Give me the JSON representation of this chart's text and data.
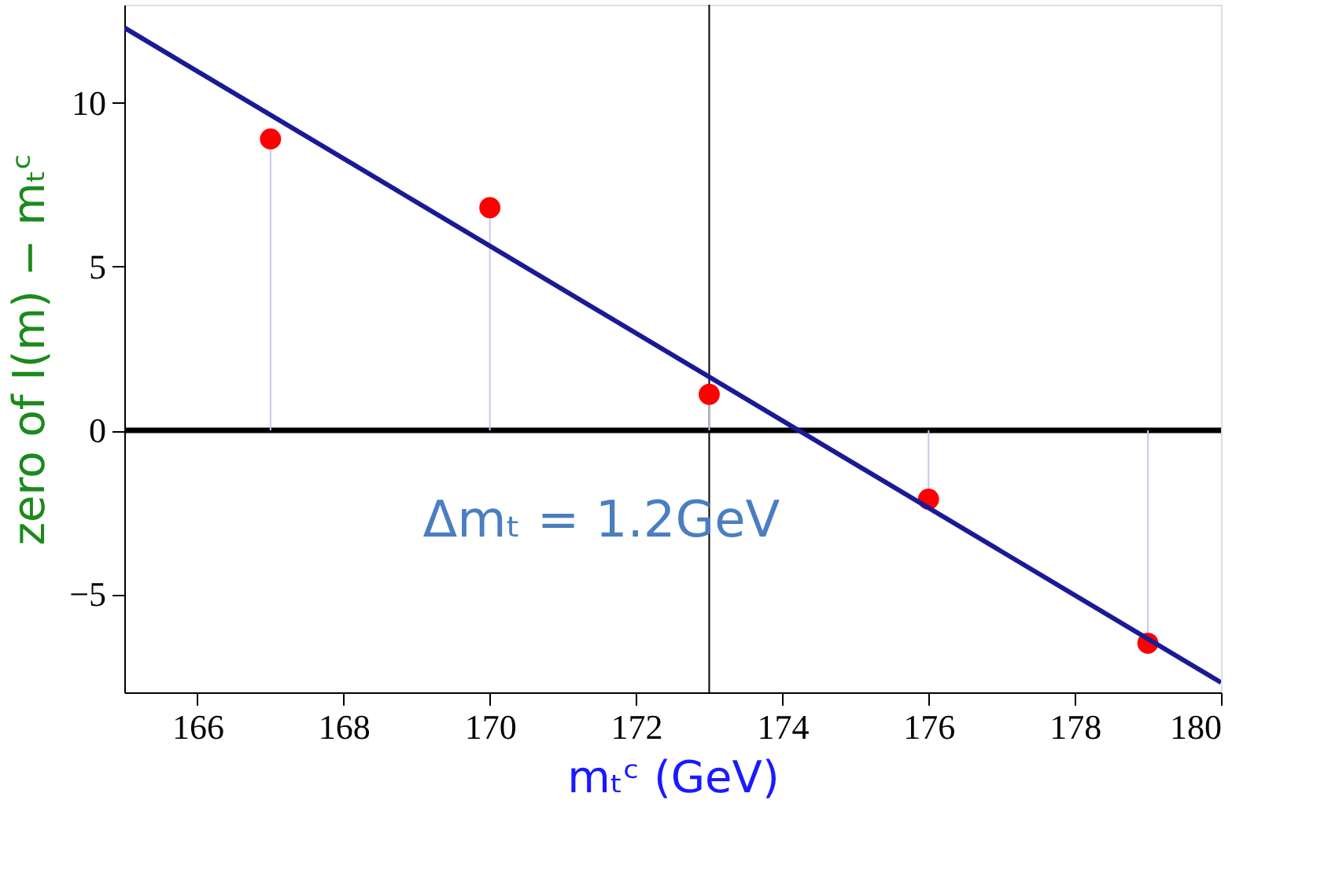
{
  "chart_data": {
    "type": "lollipop",
    "xlabel": "mₜᶜ (GeV)",
    "ylabel": "zero of I(m) − mₜᶜ",
    "x": [
      167,
      170,
      173,
      176,
      179
    ],
    "series": [
      {
        "color": "#ff0000",
        "values": [
          8.9,
          6.8,
          1.1,
          -2.1,
          -6.5
        ]
      },
      {
        "type": "line",
        "marker": "none",
        "color": "#1a1a96",
        "x": [
          165,
          180
        ],
        "values": [
          12.3,
          -7.7
        ]
      }
    ],
    "xlim": [
      165,
      180
    ],
    "ylim": [
      -8,
      13
    ],
    "xticks": [
      166,
      168,
      170,
      172,
      174,
      176,
      178,
      180
    ],
    "yticks": [
      -5,
      0,
      5,
      10
    ],
    "ref_lines": [
      {
        "axis": "y",
        "value": 0,
        "color": "#000000"
      },
      {
        "axis": "x",
        "value": 173,
        "color": "#000000"
      }
    ],
    "annotations": [
      "Δmₜ = 1.2GeV"
    ],
    "grid": false,
    "marker": "circle"
  }
}
